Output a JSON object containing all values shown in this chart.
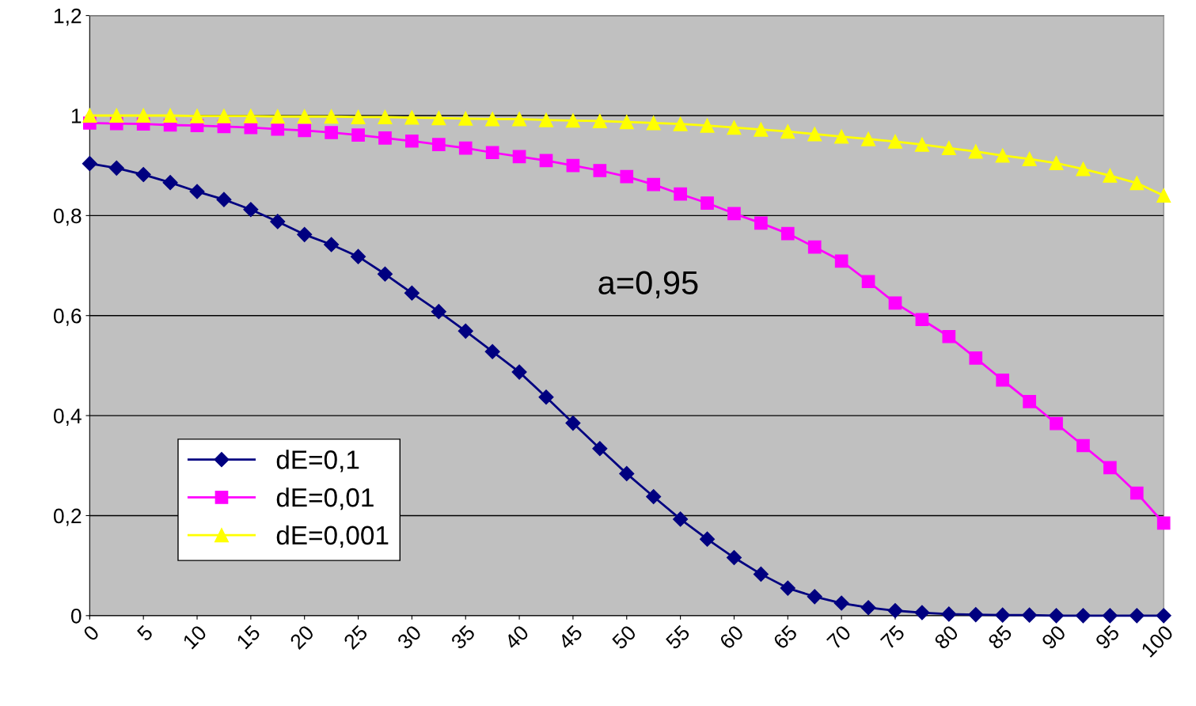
{
  "chart_data": {
    "type": "line",
    "x": [
      0,
      2.5,
      5,
      7.5,
      10,
      12.5,
      15,
      17.5,
      20,
      22.5,
      25,
      27.5,
      30,
      32.5,
      35,
      37.5,
      40,
      42.5,
      45,
      47.5,
      50,
      52.5,
      55,
      57.5,
      60,
      62.5,
      65,
      67.5,
      70,
      72.5,
      75,
      77.5,
      80,
      82.5,
      85,
      87.5,
      90,
      92.5,
      95,
      97.5,
      100
    ],
    "series": [
      {
        "name": "dE=0,1",
        "color": "#000080",
        "marker": "diamond",
        "values": [
          0.904,
          0.895,
          0.882,
          0.866,
          0.848,
          0.832,
          0.812,
          0.788,
          0.762,
          0.742,
          0.718,
          0.683,
          0.645,
          0.608,
          0.569,
          0.528,
          0.487,
          0.437,
          0.385,
          0.334,
          0.284,
          0.238,
          0.193,
          0.153,
          0.116,
          0.083,
          0.055,
          0.038,
          0.025,
          0.016,
          0.01,
          0.006,
          0.003,
          0.002,
          0.001,
          0.001,
          0,
          0,
          0,
          0,
          0
        ]
      },
      {
        "name": "dE=0,01",
        "color": "#ff00ff",
        "marker": "square",
        "values": [
          0.985,
          0.984,
          0.983,
          0.981,
          0.98,
          0.978,
          0.976,
          0.973,
          0.97,
          0.966,
          0.961,
          0.955,
          0.949,
          0.942,
          0.935,
          0.926,
          0.918,
          0.91,
          0.9,
          0.89,
          0.878,
          0.862,
          0.843,
          0.825,
          0.804,
          0.785,
          0.764,
          0.737,
          0.709,
          0.668,
          0.625,
          0.592,
          0.558,
          0.515,
          0.471,
          0.428,
          0.384,
          0.34,
          0.296,
          0.245,
          0.185
        ]
      },
      {
        "name": "dE=0,001",
        "color": "#ffff00",
        "marker": "triangle",
        "values": [
          1,
          1,
          1,
          1,
          0.999,
          0.999,
          0.999,
          0.998,
          0.998,
          0.998,
          0.997,
          0.997,
          0.996,
          0.995,
          0.994,
          0.993,
          0.993,
          0.991,
          0.99,
          0.989,
          0.987,
          0.985,
          0.983,
          0.98,
          0.976,
          0.972,
          0.968,
          0.963,
          0.958,
          0.953,
          0.948,
          0.942,
          0.935,
          0.928,
          0.92,
          0.913,
          0.905,
          0.893,
          0.88,
          0.865,
          0.84
        ]
      }
    ],
    "xlim": [
      0,
      100
    ],
    "xticks": [
      0,
      5,
      10,
      15,
      20,
      25,
      30,
      35,
      40,
      45,
      50,
      55,
      60,
      65,
      70,
      75,
      80,
      85,
      90,
      95,
      100
    ],
    "ylim": [
      0,
      1.2
    ],
    "yticks": [
      0,
      {
        "value": 0.2,
        "label": "0,2"
      },
      {
        "value": 0.4,
        "label": "0,4"
      },
      {
        "value": 0.6,
        "label": "0,6"
      },
      {
        "value": 0.8,
        "label": "0,8"
      },
      1,
      {
        "value": 1.2,
        "label": "1,2"
      }
    ],
    "grid": "y",
    "legend": "bottom left",
    "annotations": [
      "a=0,95"
    ]
  }
}
